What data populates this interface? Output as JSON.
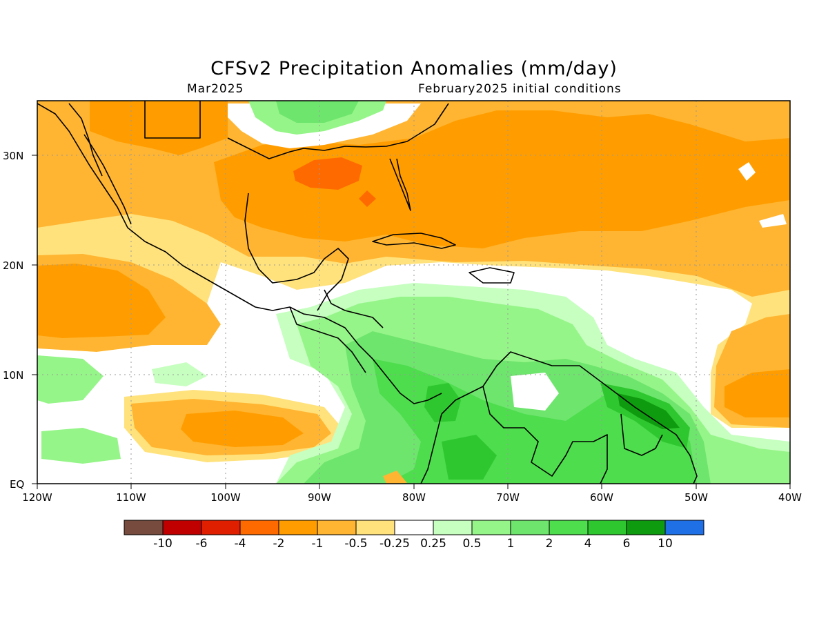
{
  "title": "CFSv2 Precipitation Anomalies (mm/day)",
  "subtitle_left": "Mar2025",
  "subtitle_right": "February2025 initial conditions",
  "lat_labels": [
    "30N",
    "20N",
    "10N",
    "EQ"
  ],
  "lon_labels": [
    "120W",
    "110W",
    "100W",
    "90W",
    "80W",
    "70W",
    "60W",
    "50W",
    "40W"
  ],
  "colorbar": {
    "colors": [
      "#774c3e",
      "#c00000",
      "#e01e00",
      "#ff6a00",
      "#ff9d00",
      "#ffb531",
      "#ffe27c",
      "#ffffff",
      "#c6ffc0",
      "#96f589",
      "#6ee56d",
      "#4ddd4d",
      "#2fc72f",
      "#0f9b0f",
      "#1f6fe6"
    ],
    "labels": [
      "-10",
      "-6",
      "-4",
      "-2",
      "-1",
      "-0.5",
      "-0.25",
      "0.25",
      "0.5",
      "1",
      "2",
      "4",
      "6",
      "10"
    ]
  },
  "palette": {
    "light_yellow": "#ffe27c",
    "light_orange": "#ffb531",
    "orange": "#ff9d00",
    "dark_orange": "#ff6a00",
    "pale_green": "#c6ffc0",
    "light_green": "#96f589",
    "green": "#6ee56d",
    "mid_green": "#4ddd4d",
    "dark_green": "#2fc72f",
    "darkest_green": "#0f9b0f"
  }
}
